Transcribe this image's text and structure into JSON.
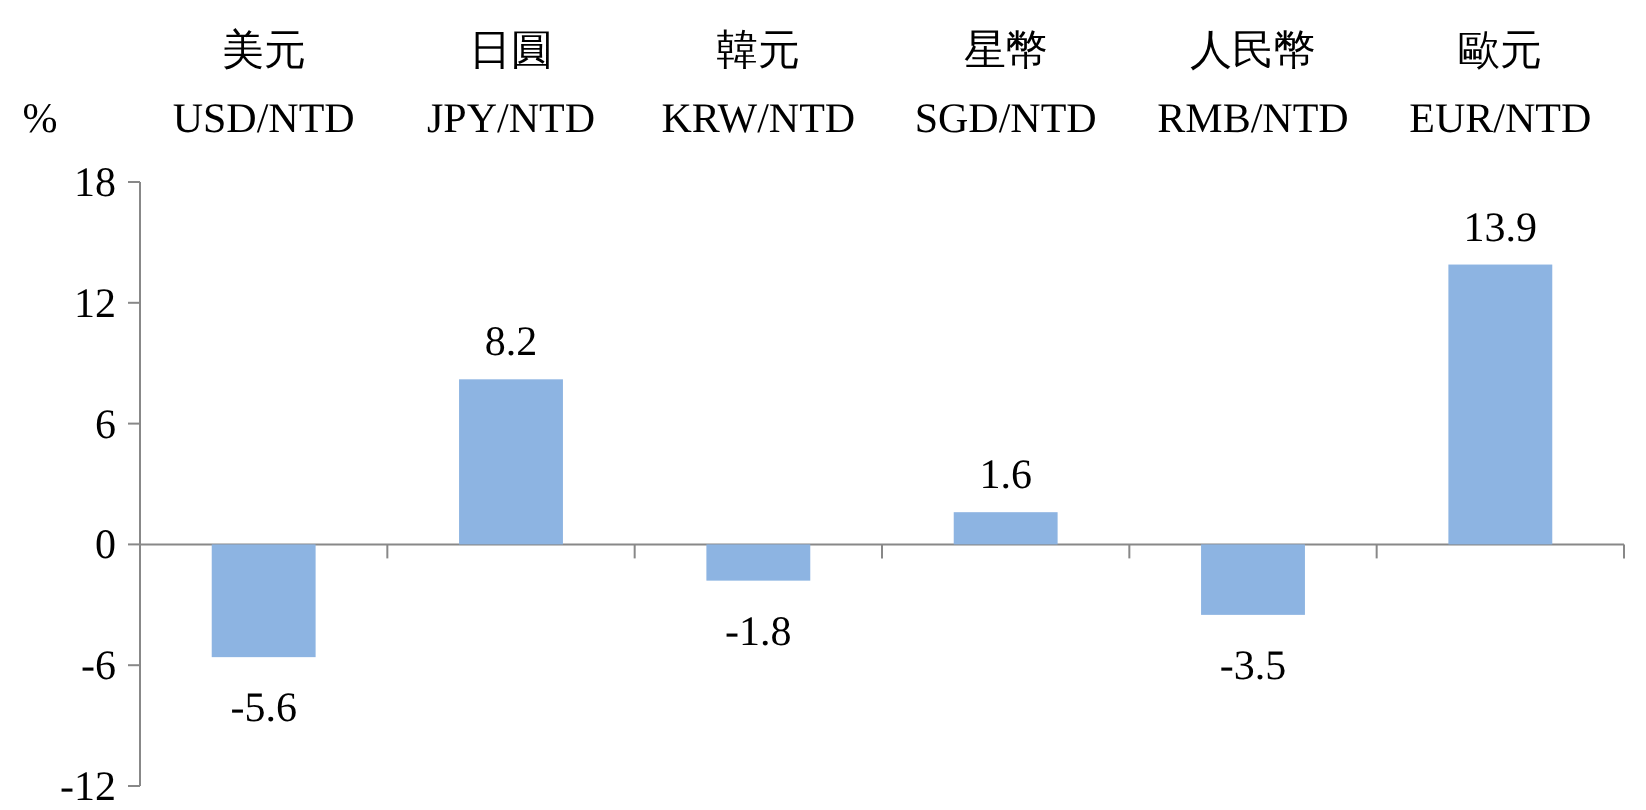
{
  "chart_data": {
    "type": "bar",
    "ylabel": "%",
    "categories": [
      "美元\nUSD/NTD",
      "日圓\nJPY/NTD",
      "韓元\nKRW/NTD",
      "星幣\nSGD/NTD",
      "人民幣\nRMB/NTD",
      "歐元\nEUR/NTD"
    ],
    "values": [
      -5.6,
      8.2,
      -1.8,
      1.6,
      -3.5,
      13.9
    ],
    "color": "#8db4e2",
    "ylim": [
      -12,
      18
    ],
    "yticks": [
      -12,
      -6,
      0,
      6,
      12,
      18
    ],
    "data_labels": true
  }
}
